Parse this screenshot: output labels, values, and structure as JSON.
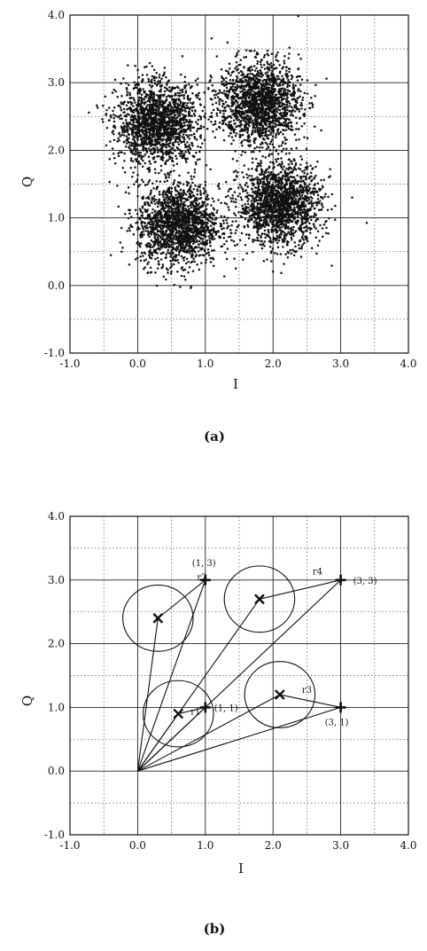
{
  "colors": {
    "ink": "#111111",
    "grid_major": "#222222",
    "grid_minor": "#555555",
    "background": "#ffffff"
  },
  "chart_data": [
    {
      "type": "scatter",
      "caption": "(a)",
      "xlabel": "I",
      "ylabel": "Q",
      "xlim": [
        -1.0,
        4.0
      ],
      "ylim": [
        -1.0,
        4.0
      ],
      "x_ticks": [
        "-1.0",
        "0.0",
        "1.0",
        "2.0",
        "3.0",
        "4.0"
      ],
      "y_ticks": [
        "-1.0",
        "0.0",
        "1.0",
        "2.0",
        "3.0",
        "4.0"
      ],
      "grid": true,
      "clusters": [
        {
          "center": [
            0.3,
            2.4
          ],
          "spread": 0.3
        },
        {
          "center": [
            1.8,
            2.7
          ],
          "spread": 0.3
        },
        {
          "center": [
            0.6,
            0.9
          ],
          "spread": 0.3
        },
        {
          "center": [
            2.1,
            1.2
          ],
          "spread": 0.3
        }
      ]
    },
    {
      "type": "scatter",
      "caption": "(b)",
      "xlabel": "I",
      "ylabel": "Q",
      "xlim": [
        -1.0,
        4.0
      ],
      "ylim": [
        -1.0,
        4.0
      ],
      "x_ticks": [
        "-1.0",
        "0.0",
        "1.0",
        "2.0",
        "3.0",
        "4.0"
      ],
      "y_ticks": [
        "-1.0",
        "0.0",
        "1.0",
        "2.0",
        "3.0",
        "4.0"
      ],
      "grid": true,
      "ideal_points": [
        {
          "x": 1,
          "y": 3,
          "label": "(1, 3)"
        },
        {
          "x": 3,
          "y": 3,
          "label": "(3, 3)"
        },
        {
          "x": 1,
          "y": 1,
          "label": "(1, 1)"
        },
        {
          "x": 3,
          "y": 1,
          "label": "(3, 1)"
        }
      ],
      "centers": [
        {
          "x": 0.3,
          "y": 2.4,
          "radius": 0.52,
          "label": "r2",
          "ideal": [
            1,
            3
          ]
        },
        {
          "x": 1.8,
          "y": 2.7,
          "radius": 0.52,
          "label": "r4",
          "ideal": [
            3,
            3
          ]
        },
        {
          "x": 0.6,
          "y": 0.9,
          "radius": 0.52,
          "label": "r1",
          "ideal": [
            1,
            1
          ]
        },
        {
          "x": 2.1,
          "y": 1.2,
          "radius": 0.52,
          "label": "r3",
          "ideal": [
            3,
            1
          ]
        }
      ],
      "origin": [
        0,
        0
      ]
    }
  ]
}
